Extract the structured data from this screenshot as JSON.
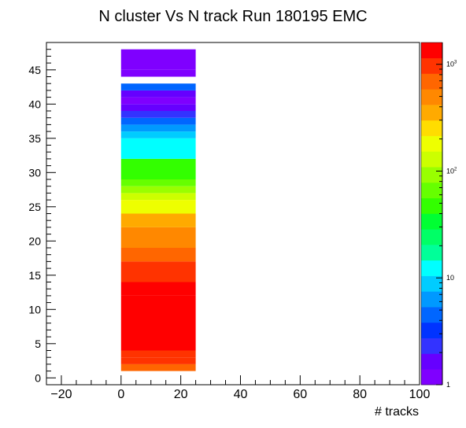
{
  "chart_data": {
    "type": "heatmap",
    "title": "N cluster Vs N track Run 180195 EMC",
    "xlabel": "# tracks",
    "ylabel": "",
    "xlim": [
      -25,
      100
    ],
    "ylim": [
      -1,
      49
    ],
    "x_ticks": [
      -20,
      0,
      20,
      40,
      60,
      80,
      100
    ],
    "y_ticks": [
      0,
      5,
      10,
      15,
      20,
      25,
      30,
      35,
      40,
      45
    ],
    "z_scale": "log",
    "zlim": [
      1,
      1600
    ],
    "z_ticks": [
      {
        "value": 1,
        "label": "1"
      },
      {
        "value": 10,
        "label": "10"
      },
      {
        "value": 100,
        "label": "10",
        "sup": "2"
      },
      {
        "value": 1000,
        "label": "10",
        "sup": "3"
      }
    ],
    "bin_x_range": [
      0,
      25
    ],
    "cells": [
      {
        "y0": 1,
        "y1": 2,
        "z": 700
      },
      {
        "y0": 2,
        "y1": 3,
        "z": 900
      },
      {
        "y0": 3,
        "y1": 4,
        "z": 1100
      },
      {
        "y0": 4,
        "y1": 12,
        "z": 1500
      },
      {
        "y0": 12,
        "y1": 14,
        "z": 1200
      },
      {
        "y0": 14,
        "y1": 17,
        "z": 900
      },
      {
        "y0": 17,
        "y1": 19,
        "z": 650
      },
      {
        "y0": 19,
        "y1": 22,
        "z": 420
      },
      {
        "y0": 22,
        "y1": 24,
        "z": 300
      },
      {
        "y0": 24,
        "y1": 26,
        "z": 180
      },
      {
        "y0": 26,
        "y1": 27,
        "z": 150
      },
      {
        "y0": 27,
        "y1": 28,
        "z": 95
      },
      {
        "y0": 28,
        "y1": 29,
        "z": 70
      },
      {
        "y0": 29,
        "y1": 32,
        "z": 45
      },
      {
        "y0": 32,
        "y1": 35,
        "z": 14
      },
      {
        "y0": 35,
        "y1": 36,
        "z": 9
      },
      {
        "y0": 36,
        "y1": 37,
        "z": 6
      },
      {
        "y0": 37,
        "y1": 38,
        "z": 4
      },
      {
        "y0": 38,
        "y1": 39,
        "z": 2.5
      },
      {
        "y0": 39,
        "y1": 40,
        "z": 1.8
      },
      {
        "y0": 40,
        "y1": 41,
        "z": 1.2
      },
      {
        "y0": 41,
        "y1": 42,
        "z": 1.8
      },
      {
        "y0": 42,
        "y1": 43,
        "z": 5
      },
      {
        "y0": 44,
        "y1": 45,
        "z": 1.1
      },
      {
        "y0": 45,
        "y1": 48,
        "z": 1.2
      }
    ]
  },
  "palette": [
    "#7f00ff",
    "#6600ff",
    "#3333ff",
    "#0033ff",
    "#0066ff",
    "#0099ff",
    "#00ccff",
    "#00ffff",
    "#00ff99",
    "#00ff66",
    "#00ff33",
    "#33ff00",
    "#66ff00",
    "#99ff00",
    "#ccff00",
    "#eeff00",
    "#ffdd00",
    "#ffaa00",
    "#ff8800",
    "#ff6600",
    "#ff3300",
    "#ff0000"
  ]
}
